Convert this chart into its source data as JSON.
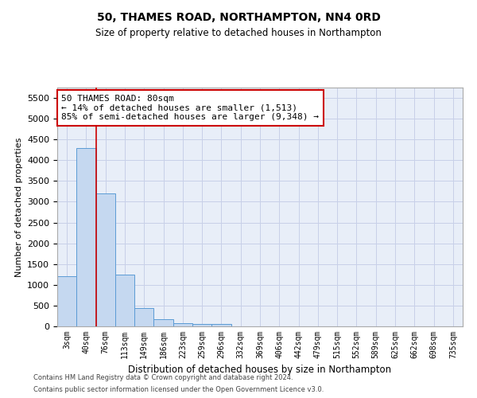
{
  "title": "50, THAMES ROAD, NORTHAMPTON, NN4 0RD",
  "subtitle": "Size of property relative to detached houses in Northampton",
  "xlabel": "Distribution of detached houses by size in Northampton",
  "ylabel": "Number of detached properties",
  "bar_color": "#c5d8f0",
  "bar_edge_color": "#5b9bd5",
  "categories": [
    "3sqm",
    "40sqm",
    "76sqm",
    "113sqm",
    "149sqm",
    "186sqm",
    "223sqm",
    "259sqm",
    "296sqm",
    "332sqm",
    "369sqm",
    "406sqm",
    "442sqm",
    "479sqm",
    "515sqm",
    "552sqm",
    "589sqm",
    "625sqm",
    "662sqm",
    "698sqm",
    "735sqm"
  ],
  "values": [
    1200,
    4300,
    3200,
    1250,
    450,
    175,
    80,
    55,
    55,
    0,
    0,
    0,
    0,
    0,
    0,
    0,
    0,
    0,
    0,
    0,
    0
  ],
  "ylim": [
    0,
    5750
  ],
  "yticks": [
    0,
    500,
    1000,
    1500,
    2000,
    2500,
    3000,
    3500,
    4000,
    4500,
    5000,
    5500
  ],
  "red_line_index": 2,
  "annotation_line1": "50 THAMES ROAD: 80sqm",
  "annotation_line2": "← 14% of detached houses are smaller (1,513)",
  "annotation_line3": "85% of semi-detached houses are larger (9,348) →",
  "footnote1": "Contains HM Land Registry data © Crown copyright and database right 2024.",
  "footnote2": "Contains public sector information licensed under the Open Government Licence v3.0.",
  "background_color": "#e8eef8",
  "grid_color": "#c8d0e8",
  "title_fontsize": 10,
  "subtitle_fontsize": 8.5,
  "annotation_fontsize": 8,
  "ylabel_fontsize": 8,
  "xlabel_fontsize": 8.5
}
